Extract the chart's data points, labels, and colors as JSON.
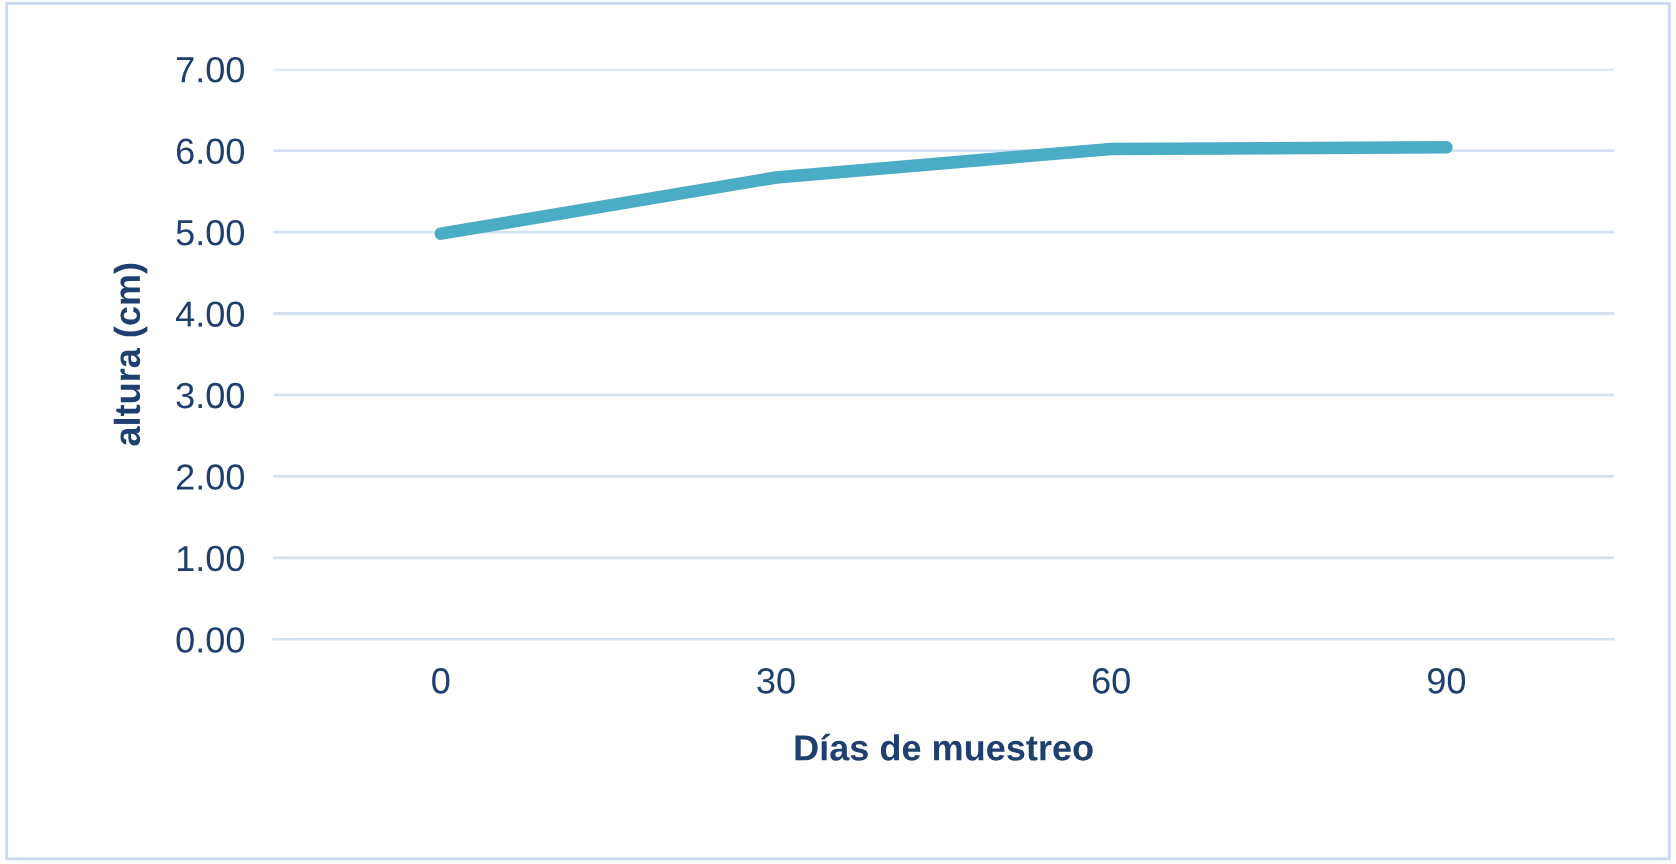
{
  "chart_data": {
    "type": "line",
    "xlabel": "Días de muestreo",
    "ylabel": "altura (cm)",
    "categories": [
      "0",
      "30",
      "60",
      "90"
    ],
    "series": [
      {
        "color": "#4bacc6",
        "values": [
          4.98,
          5.67,
          6.02,
          6.04
        ]
      }
    ],
    "ylim": [
      0,
      7
    ],
    "yticks": [
      {
        "value": 0,
        "label": "0.00"
      },
      {
        "value": 1,
        "label": "1.00"
      },
      {
        "value": 2,
        "label": "2.00"
      },
      {
        "value": 3,
        "label": "3.00"
      },
      {
        "value": 4,
        "label": "4.00"
      },
      {
        "value": 5,
        "label": "5.00"
      },
      {
        "value": 6,
        "label": "6.00"
      },
      {
        "value": 7,
        "label": "7.00"
      }
    ],
    "grid": "y",
    "marker": "none",
    "line_style": "solid"
  }
}
